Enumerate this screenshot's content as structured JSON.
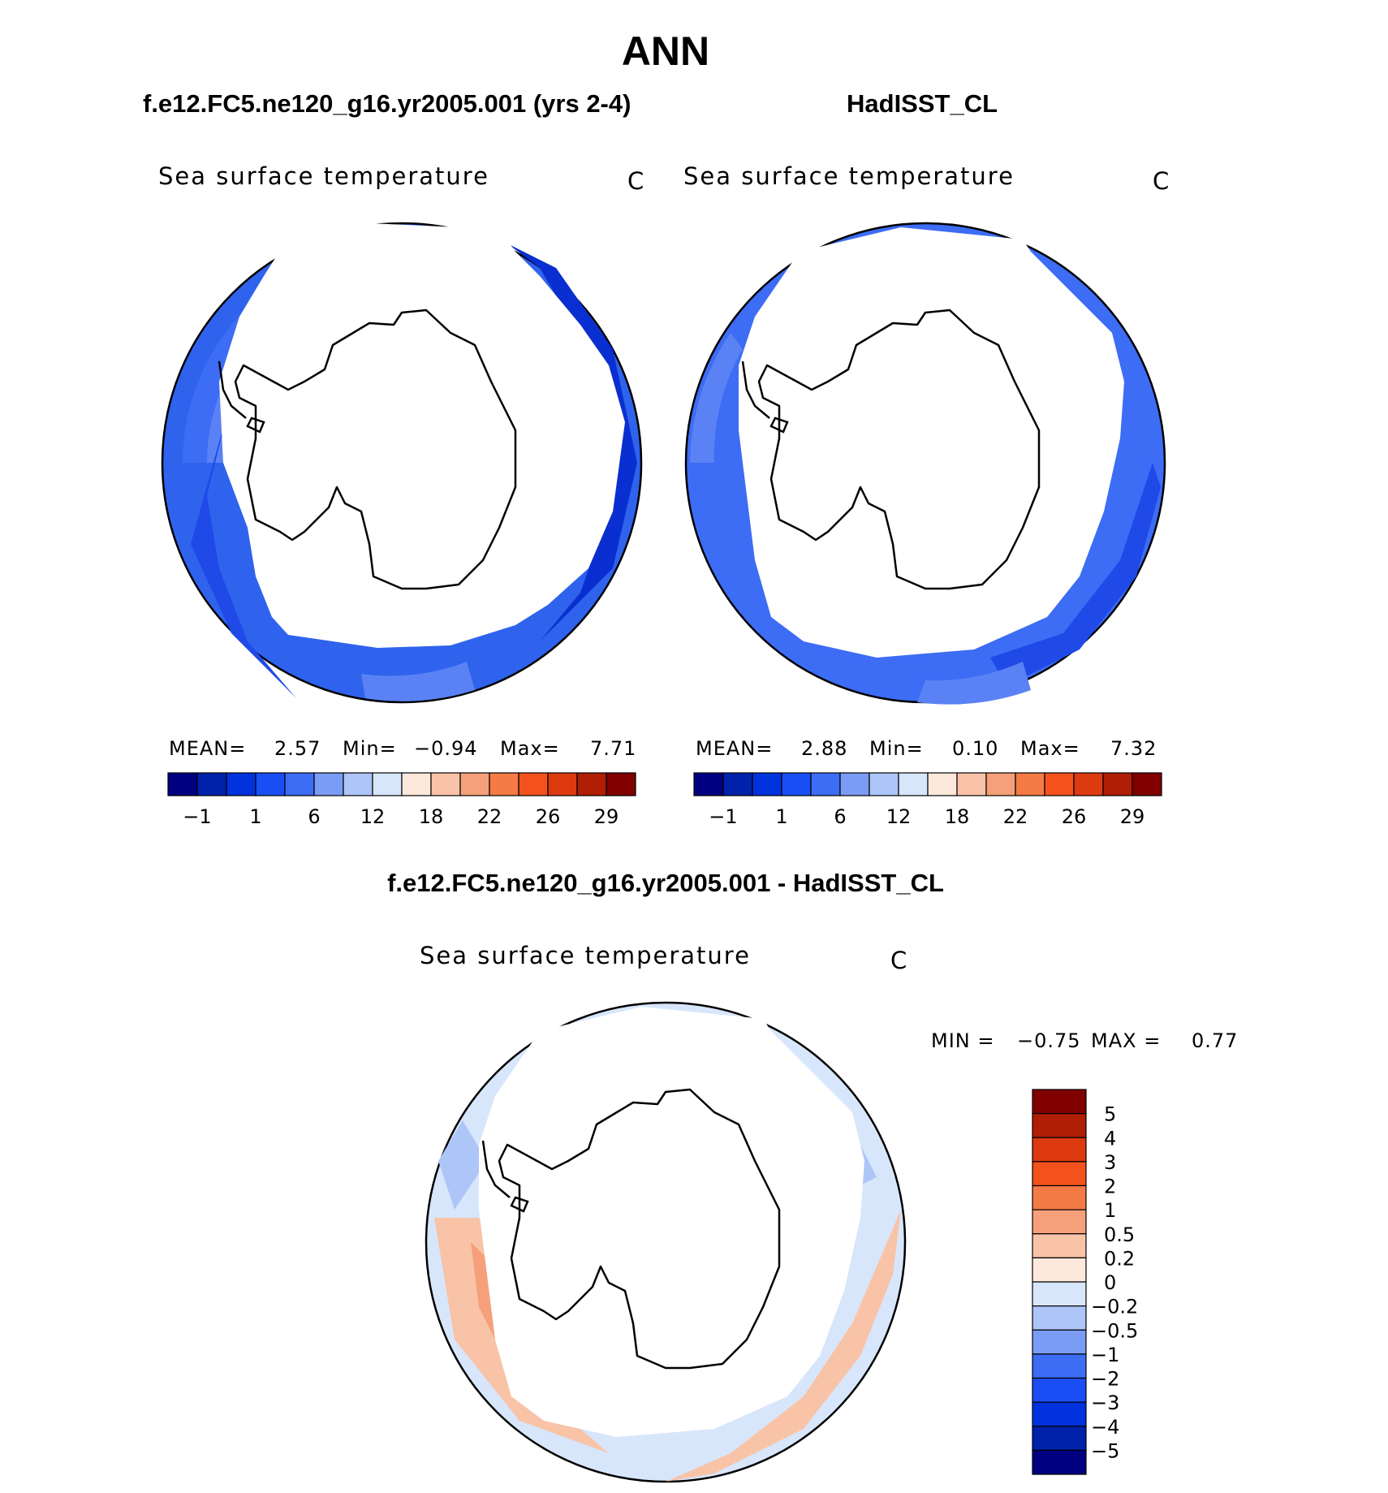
{
  "title": "ANN",
  "panels": {
    "left": {
      "case": "f.e12.FC5.ne120_g16.yr2005.001 (yrs 2-4)",
      "variable": "Sea surface temperature",
      "units": "C",
      "stats": {
        "mean_label": "MEAN=",
        "mean": "2.57",
        "min_label": "Min=",
        "min": "−0.94",
        "max_label": "Max=",
        "max": "7.71"
      }
    },
    "right": {
      "case": "HadISST_CL",
      "variable": "Sea surface temperature",
      "units": "C",
      "stats": {
        "mean_label": "MEAN=",
        "mean": "2.88",
        "min_label": "Min=",
        "min": "0.10",
        "max_label": "Max=",
        "max": "7.32"
      }
    },
    "diff": {
      "case": "f.e12.FC5.ne120_g16.yr2005.001 - HadISST_CL",
      "variable": "Sea surface temperature",
      "units": "C",
      "stats": {
        "min_label": "MIN =",
        "min": "−0.75",
        "max_label": "MAX =",
        "max": "0.77"
      }
    }
  },
  "chart_data": [
    {
      "type": "heatmap",
      "projection": "south-polar-stereographic",
      "title": "f.e12.FC5.ne120_g16.yr2005.001 (yrs 2-4)",
      "variable": "Sea surface temperature",
      "units": "C",
      "colorbar": {
        "ticks": [
          "−1",
          "1",
          "6",
          "12",
          "18",
          "22",
          "26",
          "29"
        ],
        "colors": [
          "#000080",
          "#0022aa",
          "#0033dd",
          "#1a4ef5",
          "#3d6cf5",
          "#7a9cf5",
          "#adc5f7",
          "#d8e6fb",
          "#fde9dc",
          "#f9c3a8",
          "#f5a07a",
          "#f47b46",
          "#f4521d",
          "#dd3a10",
          "#b01e05",
          "#800000"
        ]
      },
      "stats": {
        "mean": 2.57,
        "min": -0.94,
        "max": 7.71
      }
    },
    {
      "type": "heatmap",
      "projection": "south-polar-stereographic",
      "title": "HadISST_CL",
      "variable": "Sea surface temperature",
      "units": "C",
      "colorbar": {
        "ticks": [
          "−1",
          "1",
          "6",
          "12",
          "18",
          "22",
          "26",
          "29"
        ],
        "colors": [
          "#000080",
          "#0022aa",
          "#0033dd",
          "#1a4ef5",
          "#3d6cf5",
          "#7a9cf5",
          "#adc5f7",
          "#d8e6fb",
          "#fde9dc",
          "#f9c3a8",
          "#f5a07a",
          "#f47b46",
          "#f4521d",
          "#dd3a10",
          "#b01e05",
          "#800000"
        ]
      },
      "stats": {
        "mean": 2.88,
        "min": 0.1,
        "max": 7.32
      }
    },
    {
      "type": "heatmap",
      "projection": "south-polar-stereographic",
      "title": "f.e12.FC5.ne120_g16.yr2005.001 - HadISST_CL",
      "variable": "Sea surface temperature",
      "units": "C",
      "colorbar": {
        "orientation": "vertical",
        "ticks": [
          "5",
          "4",
          "3",
          "2",
          "1",
          "0.5",
          "0.2",
          "0",
          "−0.2",
          "−0.5",
          "−1",
          "−2",
          "−3",
          "−4",
          "−5"
        ],
        "colors": [
          "#800000",
          "#b01e05",
          "#dd3a10",
          "#f4521d",
          "#f47b46",
          "#f5a07a",
          "#f9c3a8",
          "#fde9dc",
          "#d8e6fb",
          "#adc5f7",
          "#7a9cf5",
          "#3d6cf5",
          "#1a4ef5",
          "#0033dd",
          "#0022aa",
          "#000080"
        ]
      },
      "stats": {
        "min": -0.75,
        "max": 0.77
      }
    }
  ]
}
